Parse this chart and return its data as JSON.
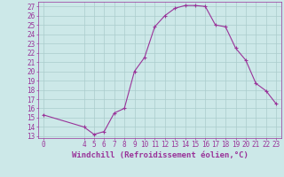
{
  "x": [
    0,
    4,
    5,
    6,
    7,
    8,
    9,
    10,
    11,
    12,
    13,
    14,
    15,
    16,
    17,
    18,
    19,
    20,
    21,
    22,
    23
  ],
  "y": [
    15.3,
    14.0,
    13.2,
    13.5,
    15.5,
    16.0,
    20.0,
    21.5,
    24.8,
    26.0,
    26.8,
    27.1,
    27.1,
    27.0,
    25.0,
    24.8,
    22.5,
    21.2,
    18.7,
    17.9,
    16.5
  ],
  "line_color": "#993399",
  "marker": "+",
  "bg_color": "#cce8e8",
  "grid_color": "#aacccc",
  "xlabel": "Windchill (Refroidissement éolien,°C)",
  "ylabel_ticks": [
    13,
    14,
    15,
    16,
    17,
    18,
    19,
    20,
    21,
    22,
    23,
    24,
    25,
    26,
    27
  ],
  "ylim": [
    12.8,
    27.5
  ],
  "xlim": [
    -0.5,
    23.5
  ],
  "xticks": [
    0,
    4,
    5,
    6,
    7,
    8,
    9,
    10,
    11,
    12,
    13,
    14,
    15,
    16,
    17,
    18,
    19,
    20,
    21,
    22,
    23
  ],
  "tick_fontsize": 5.5,
  "xlabel_fontsize": 6.5,
  "line_width": 0.8,
  "marker_size": 3
}
